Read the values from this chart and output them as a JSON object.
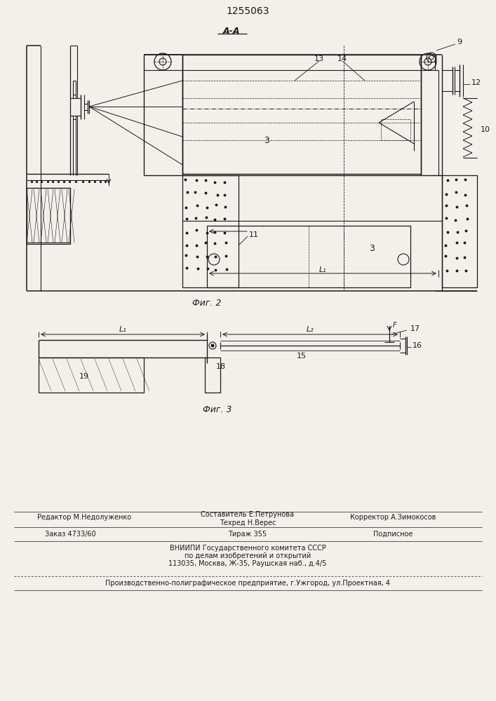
{
  "patent_number": "1255063",
  "background_color": "#f2f0eb",
  "line_color": "#1a1a1a",
  "fig_label_2": "Фиг. 2",
  "fig_label_3": "Фиг. 3",
  "section_label": "А-А"
}
